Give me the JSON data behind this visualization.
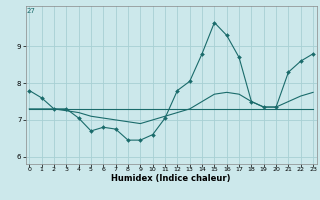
{
  "title": "27",
  "xlabel": "Humidex (Indice chaleur)",
  "background_color": "#cce8eb",
  "grid_color": "#a8d0d4",
  "line_color": "#1a6b6b",
  "x_values": [
    0,
    1,
    2,
    3,
    4,
    5,
    6,
    7,
    8,
    9,
    10,
    11,
    12,
    13,
    14,
    15,
    16,
    17,
    18,
    19,
    20,
    21,
    22,
    23
  ],
  "series1": [
    7.8,
    7.6,
    7.3,
    7.3,
    7.05,
    6.7,
    6.8,
    6.75,
    6.45,
    6.45,
    6.6,
    7.05,
    7.8,
    8.05,
    8.8,
    9.65,
    9.3,
    8.7,
    7.5,
    7.35,
    7.35,
    8.3,
    8.6,
    8.8
  ],
  "series2": [
    7.3,
    7.3,
    7.3,
    7.3,
    7.3,
    7.3,
    7.3,
    7.3,
    7.3,
    7.3,
    7.3,
    7.3,
    7.3,
    7.3,
    7.3,
    7.3,
    7.3,
    7.3,
    7.3,
    7.3,
    7.3,
    7.3,
    7.3,
    7.3
  ],
  "series3": [
    7.3,
    7.3,
    7.3,
    7.25,
    7.2,
    7.1,
    7.05,
    7.0,
    6.95,
    6.9,
    7.0,
    7.1,
    7.2,
    7.3,
    7.5,
    7.7,
    7.75,
    7.7,
    7.5,
    7.35,
    7.35,
    7.5,
    7.65,
    7.75
  ],
  "ylim": [
    5.8,
    10.1
  ],
  "yticks": [
    6,
    7,
    8,
    9
  ],
  "xticks": [
    0,
    1,
    2,
    3,
    4,
    5,
    6,
    7,
    8,
    9,
    10,
    11,
    12,
    13,
    14,
    15,
    16,
    17,
    18,
    19,
    20,
    21,
    22,
    23
  ]
}
